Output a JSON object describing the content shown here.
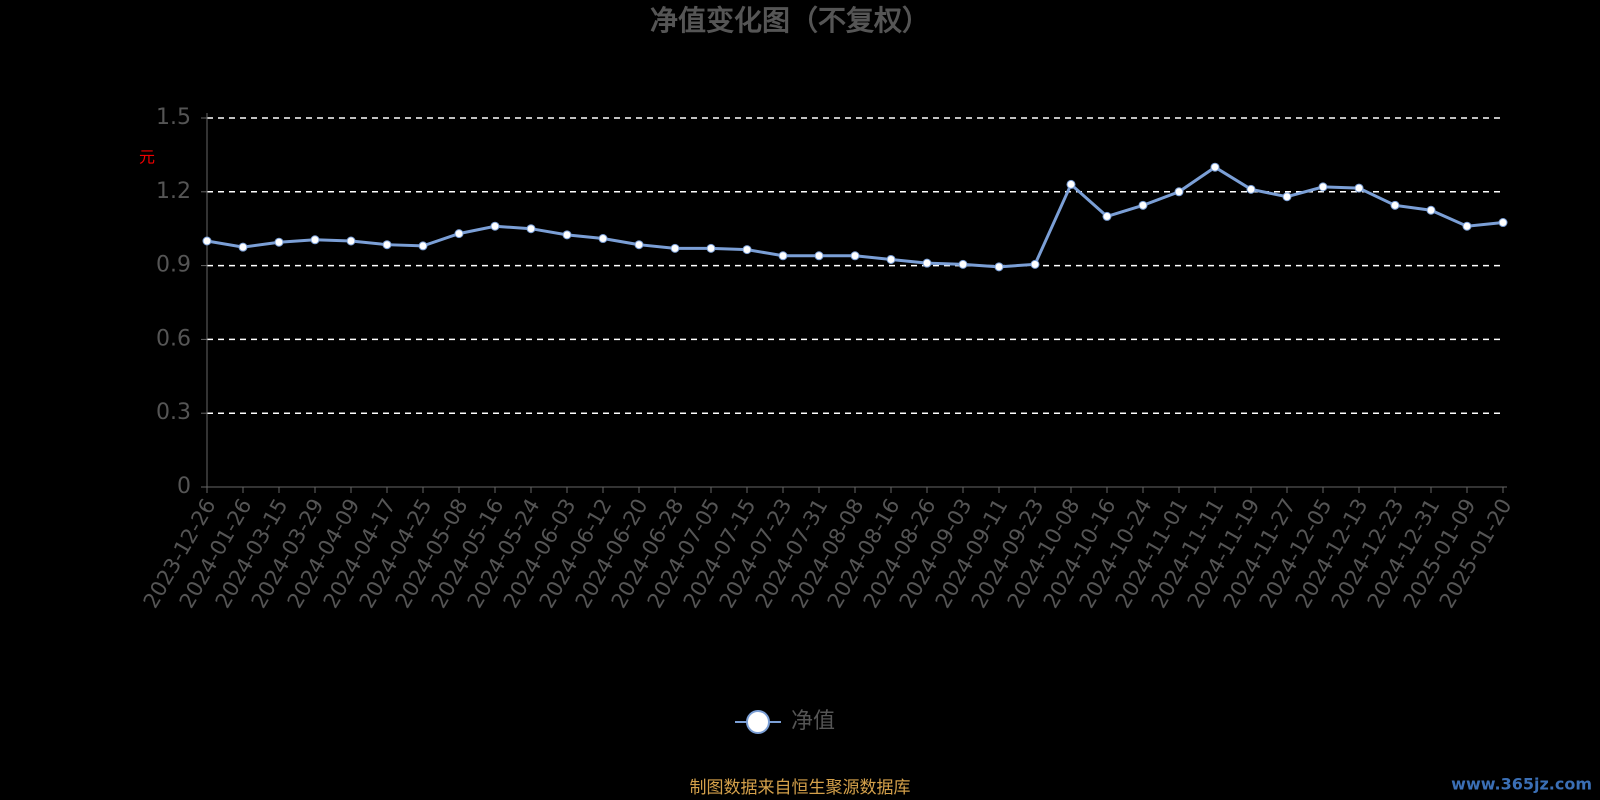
{
  "chart_data": {
    "type": "line",
    "title": "净值变化图（不复权）",
    "y_axis_label": "元",
    "categories": [
      "2023-12-26",
      "2024-01-26",
      "2024-03-15",
      "2024-03-29",
      "2024-04-09",
      "2024-04-17",
      "2024-04-25",
      "2024-05-08",
      "2024-05-16",
      "2024-05-24",
      "2024-06-03",
      "2024-06-12",
      "2024-06-20",
      "2024-06-28",
      "2024-07-05",
      "2024-07-15",
      "2024-07-23",
      "2024-07-31",
      "2024-08-08",
      "2024-08-16",
      "2024-08-26",
      "2024-09-03",
      "2024-09-11",
      "2024-09-23",
      "2024-10-08",
      "2024-10-16",
      "2024-10-24",
      "2024-11-01",
      "2024-11-11",
      "2024-11-19",
      "2024-11-27",
      "2024-12-05",
      "2024-12-13",
      "2024-12-23",
      "2024-12-31",
      "2025-01-09",
      "2025-01-20"
    ],
    "series": [
      {
        "name": "净值",
        "color": "#7b9fd6",
        "values": [
          1.0,
          0.975,
          0.995,
          1.005,
          1.0,
          0.985,
          0.98,
          1.03,
          1.06,
          1.05,
          1.025,
          1.01,
          0.985,
          0.97,
          0.97,
          0.965,
          0.94,
          0.94,
          0.94,
          0.925,
          0.91,
          0.905,
          0.895,
          0.905,
          1.23,
          1.1,
          1.145,
          1.2,
          1.3,
          1.21,
          1.18,
          1.22,
          1.215,
          1.145,
          1.125,
          1.06,
          1.075
        ]
      }
    ],
    "ylim": [
      0,
      1.5
    ],
    "yticks": [
      0,
      0.3,
      0.6,
      0.9,
      1.2,
      1.5
    ],
    "grid": true,
    "legend": "bottom",
    "source": "制图数据来自恒生聚源数据库",
    "watermark": "www.365jz.com"
  }
}
